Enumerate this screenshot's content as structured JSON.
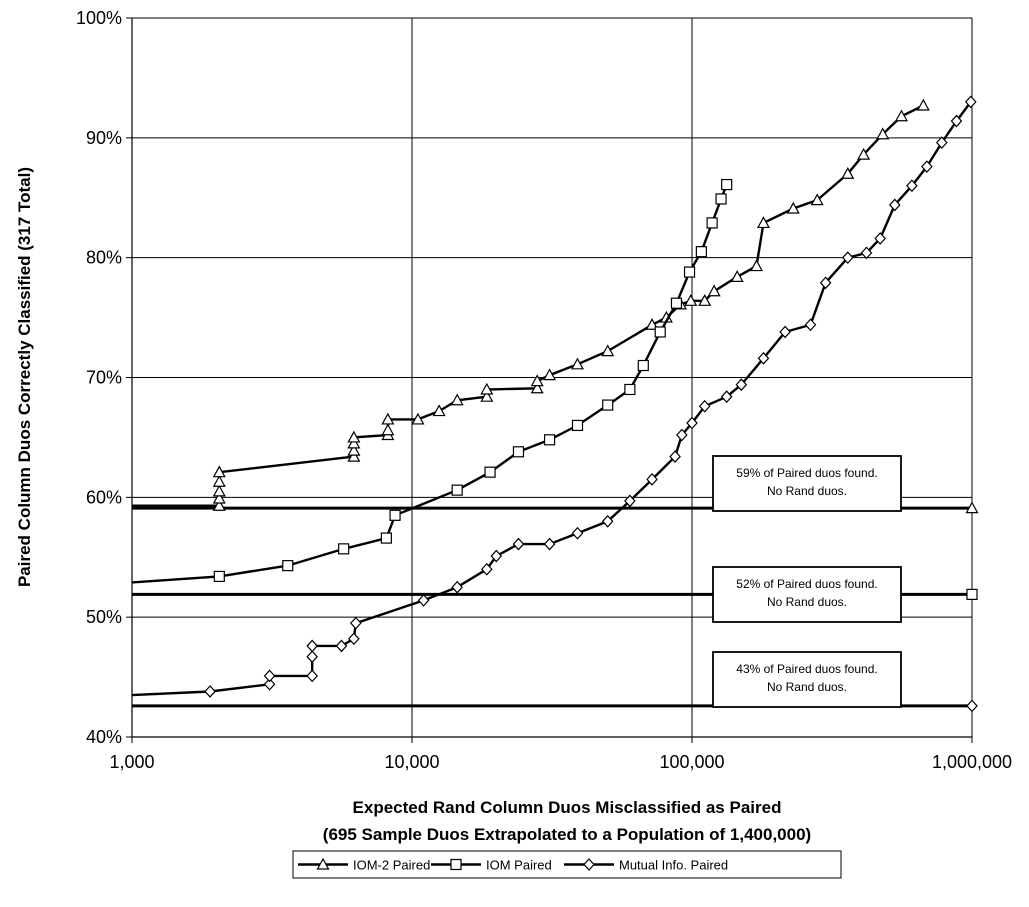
{
  "chart_data": {
    "type": "line",
    "title": "",
    "xlabel": "Expected Rand Column Duos Misclassified as Paired",
    "xlabel2": "(695 Sample Duos Extrapolated to a Population of 1,400,000)",
    "ylabel": "Paired Column Duos Correctly Classified  (317 Total)",
    "xscale": "log",
    "xlim": [
      1000,
      1000000
    ],
    "ylim": [
      40,
      100
    ],
    "x_ticks": [
      1000,
      10000,
      100000,
      1000000
    ],
    "x_tick_labels": [
      "1,000",
      "10,000",
      "100,000",
      "1,000,000"
    ],
    "y_ticks": [
      40,
      50,
      60,
      70,
      80,
      90,
      100
    ],
    "y_tick_labels": [
      "40%",
      "50%",
      "60%",
      "70%",
      "80%",
      "90%",
      "100%"
    ],
    "grid": true,
    "legend_position": "bottom",
    "series": [
      {
        "name": "IOM-2 Paired",
        "marker": "triangle",
        "points": [
          [
            2050,
            59.3
          ],
          [
            2050,
            59.9
          ],
          [
            2050,
            60.5
          ],
          [
            2050,
            61.3
          ],
          [
            2050,
            62.1
          ],
          [
            6200,
            63.4
          ],
          [
            6200,
            63.9
          ],
          [
            6200,
            64.5
          ],
          [
            6200,
            65
          ],
          [
            8200,
            65.2
          ],
          [
            8200,
            65.6
          ],
          [
            8200,
            66.5
          ],
          [
            10500,
            66.5
          ],
          [
            12500,
            67.2
          ],
          [
            14500,
            68.1
          ],
          [
            18500,
            68.4
          ],
          [
            18500,
            69
          ],
          [
            28000,
            69.1
          ],
          [
            28000,
            69.7
          ],
          [
            31000,
            70.2
          ],
          [
            39000,
            71.1
          ],
          [
            50000,
            72.2
          ],
          [
            72000,
            74.4
          ],
          [
            81000,
            75
          ],
          [
            91000,
            76.1
          ],
          [
            99000,
            76.4
          ],
          [
            111000,
            76.4
          ],
          [
            120000,
            77.2
          ],
          [
            145000,
            78.4
          ],
          [
            170000,
            79.3
          ],
          [
            180000,
            82.9
          ],
          [
            230000,
            84.1
          ],
          [
            280000,
            84.8
          ],
          [
            360000,
            87
          ],
          [
            410000,
            88.6
          ],
          [
            480000,
            90.3
          ],
          [
            560000,
            91.8
          ],
          [
            670000,
            92.7
          ]
        ]
      },
      {
        "name": "IOM Paired",
        "marker": "square",
        "points": [
          [
            2050,
            53.4
          ],
          [
            3600,
            54.3
          ],
          [
            5700,
            55.7
          ],
          [
            8100,
            56.6
          ],
          [
            8700,
            58.5
          ],
          [
            14500,
            60.6
          ],
          [
            19000,
            62.1
          ],
          [
            24000,
            63.8
          ],
          [
            31000,
            64.8
          ],
          [
            39000,
            66
          ],
          [
            50000,
            67.7
          ],
          [
            60000,
            69
          ],
          [
            67000,
            71
          ],
          [
            77000,
            73.8
          ],
          [
            88000,
            76.2
          ],
          [
            98000,
            78.8
          ],
          [
            108000,
            80.5
          ],
          [
            118000,
            82.9
          ],
          [
            127000,
            84.9
          ],
          [
            133000,
            86.1
          ]
        ]
      },
      {
        "name": "Mutual Info. Paired",
        "marker": "diamond",
        "points": [
          [
            1900,
            43.8
          ],
          [
            3100,
            44.4
          ],
          [
            3100,
            45.1
          ],
          [
            4400,
            45.1
          ],
          [
            4400,
            46.7
          ],
          [
            4400,
            47.6
          ],
          [
            5600,
            47.6
          ],
          [
            6200,
            48.2
          ],
          [
            6300,
            49.5
          ],
          [
            11000,
            51.4
          ],
          [
            14500,
            52.5
          ],
          [
            18500,
            54
          ],
          [
            20000,
            55.1
          ],
          [
            24000,
            56.1
          ],
          [
            31000,
            56.1
          ],
          [
            39000,
            57
          ],
          [
            50000,
            58
          ],
          [
            60000,
            59.7
          ],
          [
            72000,
            61.5
          ],
          [
            87000,
            63.4
          ],
          [
            92000,
            65.2
          ],
          [
            100000,
            66.2
          ],
          [
            111000,
            67.6
          ],
          [
            133000,
            68.4
          ],
          [
            150000,
            69.4
          ],
          [
            180000,
            71.6
          ],
          [
            215000,
            73.8
          ],
          [
            265000,
            74.4
          ],
          [
            300000,
            77.9
          ],
          [
            360000,
            80
          ],
          [
            420000,
            80.4
          ],
          [
            470000,
            81.6
          ],
          [
            530000,
            84.4
          ],
          [
            610000,
            86
          ],
          [
            690000,
            87.6
          ],
          [
            780000,
            89.6
          ],
          [
            880000,
            91.4
          ],
          [
            990000,
            93
          ]
        ]
      }
    ],
    "baselines": [
      {
        "y": 59.1,
        "marker": "triangle",
        "series": "IOM-2 Paired"
      },
      {
        "y": 51.9,
        "marker": "square",
        "series": "IOM Paired"
      },
      {
        "y": 42.6,
        "marker": "diamond",
        "series": "Mutual Info. Paired"
      }
    ],
    "annotations": [
      {
        "line1": "59% of Paired duos found.",
        "line2": "No Rand duos."
      },
      {
        "line1": "52% of Paired duos found.",
        "line2": "No Rand duos."
      },
      {
        "line1": "43%  of Paired duos found.",
        "line2": "No Rand duos."
      }
    ]
  }
}
